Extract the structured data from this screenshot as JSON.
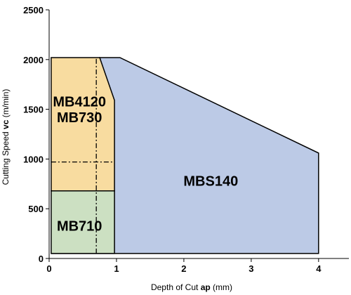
{
  "chart_data": {
    "type": "area",
    "title": "",
    "xlabel_prefix": "Depth of Cut ",
    "xlabel_symbol": "ap",
    "xlabel_unit": " (mm)",
    "ylabel_prefix": "Cutting Speed ",
    "ylabel_symbol": "vc",
    "ylabel_unit": " (m/min)",
    "xlim": [
      0,
      4.45
    ],
    "ylim": [
      0,
      2500
    ],
    "x_ticks": [
      0,
      1,
      2,
      3,
      4
    ],
    "y_ticks": [
      0,
      500,
      1000,
      1500,
      2000,
      2500
    ],
    "x_tick_labels": [
      "0",
      "1",
      "2",
      "3",
      "4"
    ],
    "y_tick_labels": [
      "0",
      "500",
      "1000",
      "1500",
      "2000",
      "2500"
    ],
    "grid": false,
    "series": [
      {
        "name": "MBS140",
        "color": "#bccae6",
        "polygon": [
          [
            0.03,
            50
          ],
          [
            4.0,
            50
          ],
          [
            4.0,
            1060
          ],
          [
            1.05,
            2020
          ],
          [
            0.75,
            2020
          ],
          [
            0.95,
            1590
          ],
          [
            0.95,
            50
          ]
        ]
      },
      {
        "name": "MB4120",
        "color": "#f8dca0",
        "polygon": [
          [
            0.03,
            680
          ],
          [
            0.97,
            680
          ],
          [
            0.97,
            1590
          ],
          [
            0.75,
            2020
          ],
          [
            0.03,
            2020
          ]
        ]
      },
      {
        "name": "MB730",
        "color": "#f8dca0",
        "polygon": []
      },
      {
        "name": "MB710",
        "color": "#cce0c2",
        "polygon": [
          [
            0.03,
            50
          ],
          [
            0.97,
            50
          ],
          [
            0.97,
            680
          ],
          [
            0.03,
            680
          ]
        ]
      }
    ],
    "reference_lines": [
      {
        "kind": "vertical",
        "x": 0.7,
        "y_range": [
          50,
          2020
        ]
      },
      {
        "kind": "horizontal",
        "y": 970,
        "x_range": [
          0.03,
          0.97
        ]
      }
    ],
    "labels": [
      {
        "text": "MB4120",
        "x": 0.45,
        "y": 1580
      },
      {
        "text": "MB730",
        "x": 0.45,
        "y": 1420
      },
      {
        "text": "MB710",
        "x": 0.45,
        "y": 330
      },
      {
        "text": "MBS140",
        "x": 2.4,
        "y": 780
      }
    ]
  }
}
